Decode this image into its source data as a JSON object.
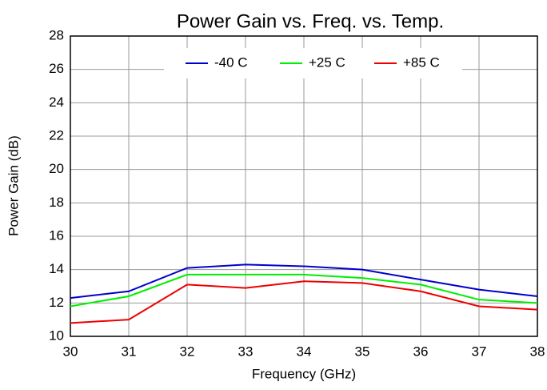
{
  "chart_data": {
    "type": "line",
    "title": "Power Gain vs. Freq. vs. Temp.",
    "x_label": "Frequency (GHz)",
    "y_label": "Power Gain (dB)",
    "x": [
      30,
      31,
      32,
      33,
      34,
      35,
      36,
      37,
      38
    ],
    "series": [
      {
        "name": "-40 C",
        "color": "#0000cc",
        "values": [
          12.3,
          12.7,
          14.1,
          14.3,
          14.2,
          14.0,
          13.4,
          12.8,
          12.4
        ]
      },
      {
        "name": "+25 C",
        "color": "#00ee00",
        "values": [
          11.8,
          12.4,
          13.7,
          13.7,
          13.7,
          13.5,
          13.1,
          12.2,
          12.0
        ]
      },
      {
        "name": "+85 C",
        "color": "#ee0000",
        "values": [
          10.8,
          11.0,
          13.1,
          12.9,
          13.3,
          13.2,
          12.7,
          11.8,
          11.6
        ]
      }
    ],
    "xlim": [
      30,
      38
    ],
    "xticks": [
      30,
      31,
      32,
      33,
      34,
      35,
      36,
      37,
      38
    ],
    "ylim": [
      10,
      28
    ],
    "yticks": [
      10,
      12,
      14,
      16,
      18,
      20,
      22,
      24,
      26,
      28
    ],
    "grid": true,
    "legend": "top"
  }
}
